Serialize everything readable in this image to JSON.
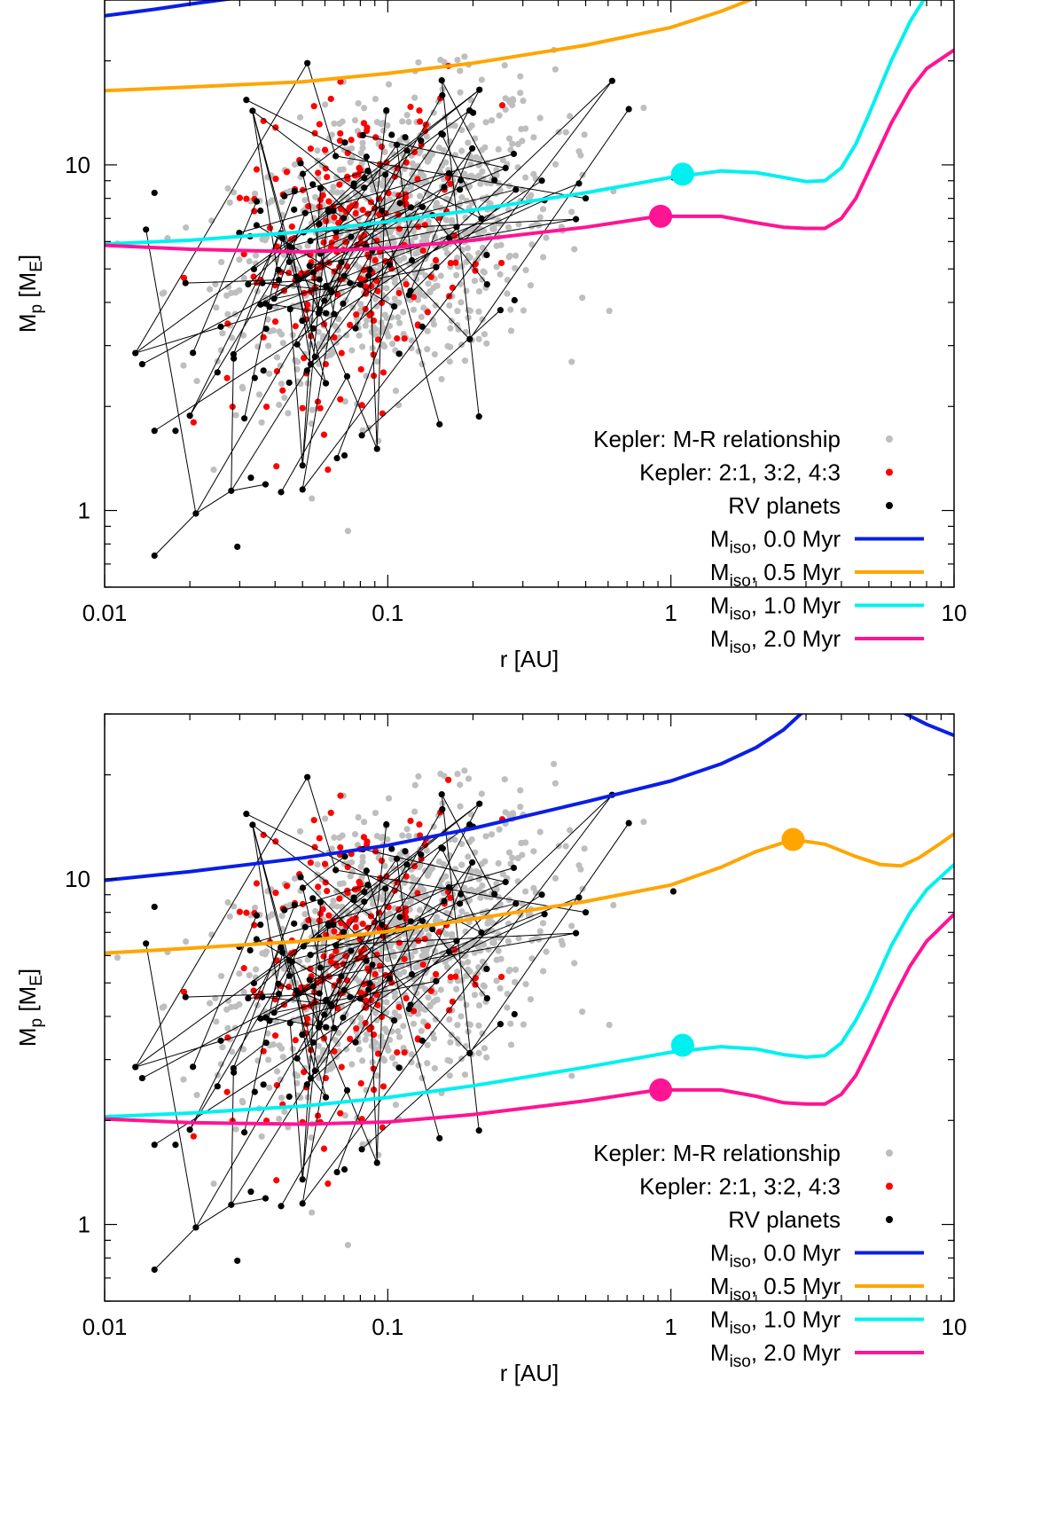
{
  "colors": {
    "kepler_mr": "#bebebe",
    "kepler_res": "#ff0000",
    "rv": "#000000",
    "m00": "#0a1ee6",
    "m05": "#ffa500",
    "m10": "#00f0f0",
    "m20": "#ff1493"
  },
  "chart_data": [
    {
      "type": "scatter",
      "id": "top",
      "xlabel": "r [AU]",
      "ylabel": {
        "main": "M",
        "sub1": "p",
        "mid": " [M",
        "sub2": "E",
        "end": "]"
      },
      "xscale": "log",
      "yscale": "log",
      "xlim": [
        0.01,
        10
      ],
      "ylim": [
        0.6,
        30
      ],
      "xticks": [
        {
          "v": 0.01,
          "label": "0.01"
        },
        {
          "v": 0.1,
          "label": "0.1"
        },
        {
          "v": 1,
          "label": "1"
        },
        {
          "v": 10,
          "label": "10"
        }
      ],
      "yticks": [
        {
          "v": 1,
          "label": "1"
        },
        {
          "v": 10,
          "label": "10"
        }
      ],
      "legend": [
        {
          "label": "Kepler: M-R relationship",
          "kind": "dot",
          "key": "kepler_mr"
        },
        {
          "label": "Kepler: 2:1, 3:2, 4:3",
          "kind": "dot",
          "key": "kepler_res"
        },
        {
          "label": "RV planets",
          "kind": "dot",
          "key": "rv"
        },
        {
          "label": "M",
          "sub": "iso",
          "suffix": ", 0.0 Myr",
          "kind": "line",
          "key": "m00"
        },
        {
          "label": "M",
          "sub": "iso",
          "suffix": ", 0.5 Myr",
          "kind": "line",
          "key": "m05"
        },
        {
          "label": "M",
          "sub": "iso",
          "suffix": ", 1.0 Myr",
          "kind": "line",
          "key": "m10"
        },
        {
          "label": "M",
          "sub": "iso",
          "suffix": ", 2.0 Myr",
          "kind": "line",
          "key": "m20"
        }
      ],
      "curves": [
        {
          "name": "M_iso, 0.0 Myr",
          "key": "m00",
          "points": [
            [
              0.01,
              27.0
            ],
            [
              0.015,
              28.2
            ],
            [
              0.02,
              29.2
            ],
            [
              0.03,
              30.5
            ],
            [
              0.04,
              31.5
            ]
          ]
        },
        {
          "name": "M_iso, 0.5 Myr",
          "key": "m05",
          "points": [
            [
              0.01,
              16.4
            ],
            [
              0.02,
              16.8
            ],
            [
              0.05,
              17.4
            ],
            [
              0.1,
              18.4
            ],
            [
              0.2,
              19.7
            ],
            [
              0.5,
              22.2
            ],
            [
              1.0,
              25.0
            ],
            [
              1.5,
              27.8
            ],
            [
              2.0,
              30.5
            ],
            [
              2.5,
              33.0
            ]
          ]
        },
        {
          "name": "M_iso, 1.0 Myr",
          "key": "m10",
          "points": [
            [
              0.01,
              5.9
            ],
            [
              0.02,
              6.05
            ],
            [
              0.05,
              6.4
            ],
            [
              0.1,
              6.85
            ],
            [
              0.2,
              7.4
            ],
            [
              0.5,
              8.3
            ],
            [
              1.0,
              9.2
            ],
            [
              1.5,
              9.6
            ],
            [
              2.0,
              9.5
            ],
            [
              2.5,
              9.2
            ],
            [
              3.0,
              8.95
            ],
            [
              3.5,
              9.0
            ],
            [
              4.0,
              9.8
            ],
            [
              4.5,
              11.5
            ],
            [
              5.0,
              14.0
            ],
            [
              6.0,
              20.0
            ],
            [
              7.0,
              26.0
            ],
            [
              8.0,
              31.0
            ]
          ]
        },
        {
          "name": "M_iso, 2.0 Myr",
          "key": "m20",
          "points": [
            [
              0.01,
              5.85
            ],
            [
              0.02,
              5.7
            ],
            [
              0.05,
              5.6
            ],
            [
              0.1,
              5.75
            ],
            [
              0.2,
              6.05
            ],
            [
              0.5,
              6.6
            ],
            [
              0.9,
              7.1
            ],
            [
              1.5,
              7.1
            ],
            [
              2.0,
              6.8
            ],
            [
              2.5,
              6.6
            ],
            [
              3.0,
              6.55
            ],
            [
              3.5,
              6.55
            ],
            [
              4.0,
              7.0
            ],
            [
              4.5,
              8.0
            ],
            [
              5.0,
              9.6
            ],
            [
              6.0,
              13.2
            ],
            [
              7.0,
              16.5
            ],
            [
              8.0,
              19.0
            ],
            [
              10.0,
              21.5
            ]
          ]
        }
      ],
      "markers": [
        {
          "key": "m10",
          "r": 1.1,
          "m": 9.4
        },
        {
          "key": "m20",
          "r": 0.92,
          "m": 7.1
        }
      ]
    },
    {
      "type": "scatter",
      "id": "bottom",
      "xlabel": "r [AU]",
      "ylabel": {
        "main": "M",
        "sub1": "p",
        "mid": " [M",
        "sub2": "E",
        "end": "]"
      },
      "xscale": "log",
      "yscale": "log",
      "xlim": [
        0.01,
        10
      ],
      "ylim": [
        0.6,
        30
      ],
      "xticks": [
        {
          "v": 0.01,
          "label": "0.01"
        },
        {
          "v": 0.1,
          "label": "0.1"
        },
        {
          "v": 1,
          "label": "1"
        },
        {
          "v": 10,
          "label": "10"
        }
      ],
      "yticks": [
        {
          "v": 1,
          "label": "1"
        },
        {
          "v": 10,
          "label": "10"
        }
      ],
      "legend": [
        {
          "label": "Kepler: M-R relationship",
          "kind": "dot",
          "key": "kepler_mr"
        },
        {
          "label": "Kepler: 2:1, 3:2, 4:3",
          "kind": "dot",
          "key": "kepler_res"
        },
        {
          "label": "RV planets",
          "kind": "dot",
          "key": "rv"
        },
        {
          "label": "M",
          "sub": "iso",
          "suffix": ", 0.0 Myr",
          "kind": "line",
          "key": "m00"
        },
        {
          "label": "M",
          "sub": "iso",
          "suffix": ", 0.5 Myr",
          "kind": "line",
          "key": "m05"
        },
        {
          "label": "M",
          "sub": "iso",
          "suffix": ", 1.0 Myr",
          "kind": "line",
          "key": "m10"
        },
        {
          "label": "M",
          "sub": "iso",
          "suffix": ", 2.0 Myr",
          "kind": "line",
          "key": "m20"
        }
      ],
      "curves": [
        {
          "name": "M_iso, 0.0 Myr",
          "key": "m00",
          "points": [
            [
              0.01,
              9.9
            ],
            [
              0.02,
              10.5
            ],
            [
              0.05,
              11.5
            ],
            [
              0.1,
              12.5
            ],
            [
              0.2,
              14.0
            ],
            [
              0.5,
              16.7
            ],
            [
              1.0,
              19.2
            ],
            [
              1.5,
              21.5
            ],
            [
              2.0,
              24.0
            ],
            [
              2.5,
              27.0
            ],
            [
              3.0,
              31.0
            ],
            [
              3.3,
              34.0
            ]
          ]
        },
        {
          "name": "M_iso, 0.0 Myr (outer)",
          "key": "m00",
          "points": [
            [
              6.5,
              30.5
            ],
            [
              8.0,
              28.0
            ],
            [
              10.0,
              26.0
            ]
          ]
        },
        {
          "name": "M_iso, 0.5 Myr",
          "key": "m05",
          "points": [
            [
              0.01,
              6.1
            ],
            [
              0.02,
              6.3
            ],
            [
              0.05,
              6.6
            ],
            [
              0.1,
              7.05
            ],
            [
              0.2,
              7.65
            ],
            [
              0.5,
              8.6
            ],
            [
              1.0,
              9.6
            ],
            [
              1.5,
              10.8
            ],
            [
              2.0,
              12.0
            ],
            [
              2.7,
              13.0
            ],
            [
              3.5,
              12.6
            ],
            [
              4.5,
              11.6
            ],
            [
              5.5,
              11.0
            ],
            [
              6.5,
              10.9
            ],
            [
              7.5,
              11.5
            ],
            [
              9.0,
              12.7
            ],
            [
              10.0,
              13.5
            ]
          ]
        },
        {
          "name": "M_iso, 1.0 Myr",
          "key": "m10",
          "points": [
            [
              0.01,
              2.05
            ],
            [
              0.02,
              2.1
            ],
            [
              0.05,
              2.2
            ],
            [
              0.1,
              2.33
            ],
            [
              0.2,
              2.52
            ],
            [
              0.5,
              2.85
            ],
            [
              1.0,
              3.15
            ],
            [
              1.5,
              3.27
            ],
            [
              2.0,
              3.22
            ],
            [
              2.5,
              3.1
            ],
            [
              3.0,
              3.05
            ],
            [
              3.5,
              3.08
            ],
            [
              4.0,
              3.35
            ],
            [
              4.5,
              3.9
            ],
            [
              5.0,
              4.6
            ],
            [
              6.0,
              6.4
            ],
            [
              7.0,
              8.0
            ],
            [
              8.0,
              9.3
            ],
            [
              10.0,
              11.0
            ]
          ]
        },
        {
          "name": "M_iso, 2.0 Myr",
          "key": "m20",
          "points": [
            [
              0.01,
              2.02
            ],
            [
              0.02,
              1.97
            ],
            [
              0.05,
              1.95
            ],
            [
              0.1,
              1.98
            ],
            [
              0.2,
              2.08
            ],
            [
              0.5,
              2.28
            ],
            [
              0.9,
              2.45
            ],
            [
              1.5,
              2.45
            ],
            [
              2.0,
              2.35
            ],
            [
              2.5,
              2.25
            ],
            [
              3.0,
              2.23
            ],
            [
              3.5,
              2.23
            ],
            [
              4.0,
              2.38
            ],
            [
              4.5,
              2.7
            ],
            [
              5.0,
              3.2
            ],
            [
              6.0,
              4.4
            ],
            [
              7.0,
              5.6
            ],
            [
              8.0,
              6.6
            ],
            [
              10.0,
              7.9
            ]
          ]
        }
      ],
      "markers": [
        {
          "key": "m05",
          "r": 2.7,
          "m": 13.0
        },
        {
          "key": "m10",
          "r": 1.1,
          "m": 3.3
        },
        {
          "key": "m20",
          "r": 0.92,
          "m": 2.45
        }
      ]
    }
  ]
}
